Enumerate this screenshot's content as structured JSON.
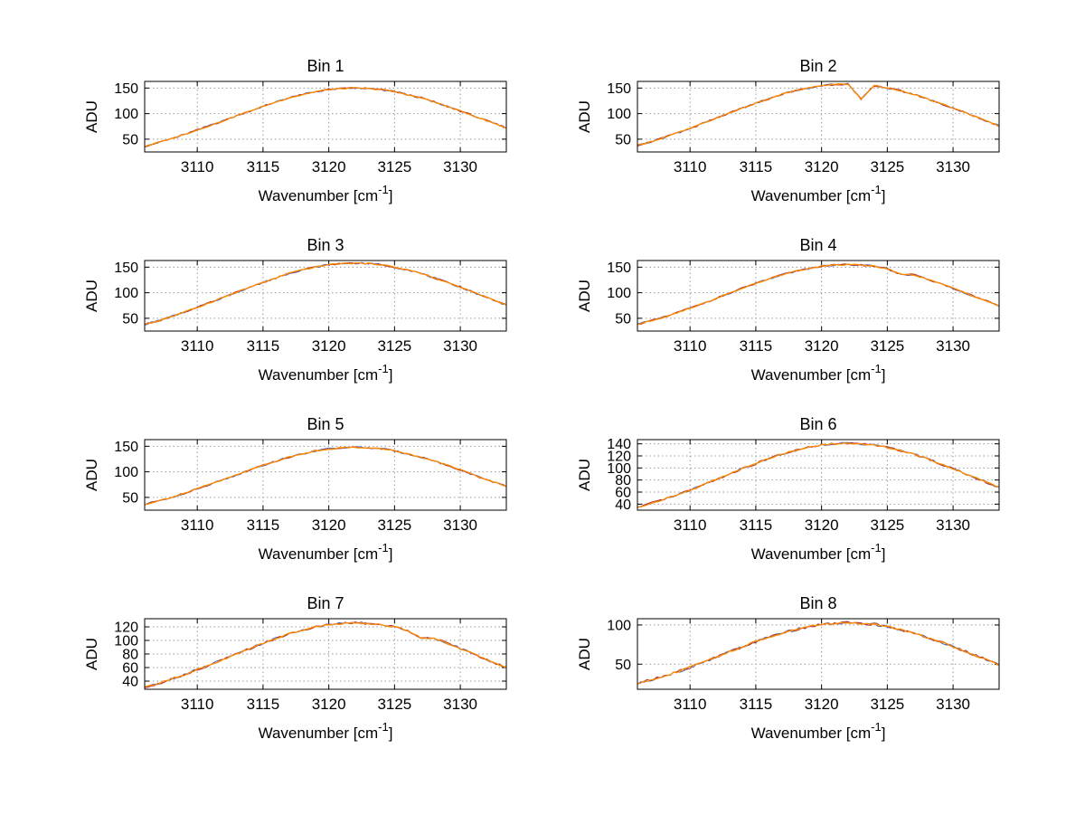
{
  "figure": {
    "background": "#ffffff",
    "colors": {
      "main_line": "#ff8c00",
      "underlay_blue": "#4a5fb5",
      "underlay_red": "#b03a2e",
      "grid": "#999999",
      "axis": "#000000",
      "text": "#000000"
    }
  },
  "axes_labels": {
    "ylabel": "ADU",
    "xlabel_main": "Wavenumber [cm",
    "xlabel_sup": "-1",
    "xlabel_close": "]"
  },
  "shared_axes": {
    "x": [
      3106,
      3107,
      3108,
      3109,
      3110,
      3111,
      3112,
      3113,
      3114,
      3115,
      3116,
      3117,
      3118,
      3119,
      3120,
      3121,
      3122,
      3123,
      3124,
      3125,
      3126,
      3127,
      3128,
      3129,
      3130,
      3131,
      3132,
      3133,
      3133.5
    ],
    "xlim": [
      3106,
      3133.5
    ],
    "xticks": [
      3110,
      3115,
      3120,
      3125,
      3130
    ]
  },
  "chart_data": [
    {
      "type": "line",
      "title": "Bin 1",
      "ylabel": "ADU",
      "xlabel": "Wavenumber [cm⁻¹]",
      "ylim": [
        25,
        163
      ],
      "yticks": [
        50,
        100,
        150
      ],
      "values": [
        36,
        43,
        51,
        59,
        68,
        77,
        86,
        96,
        105,
        114,
        123,
        131,
        137,
        143,
        147,
        149,
        150,
        149,
        147,
        143,
        137,
        131,
        123,
        114,
        105,
        96,
        86,
        77,
        72
      ]
    },
    {
      "type": "line",
      "title": "Bin 2",
      "ylabel": "ADU",
      "xlabel": "Wavenumber [cm⁻¹]",
      "ylim": [
        25,
        163
      ],
      "yticks": [
        50,
        100,
        150
      ],
      "values": [
        38,
        45,
        53,
        62,
        71,
        81,
        91,
        101,
        111,
        120,
        129,
        138,
        145,
        150,
        155,
        157,
        158,
        128,
        155,
        150,
        145,
        138,
        129,
        120,
        111,
        101,
        91,
        81,
        76
      ]
    },
    {
      "type": "line",
      "title": "Bin 3",
      "ylabel": "ADU",
      "xlabel": "Wavenumber [cm⁻¹]",
      "ylim": [
        25,
        163
      ],
      "yticks": [
        50,
        100,
        150
      ],
      "values": [
        38,
        45,
        53,
        62,
        71,
        81,
        91,
        101,
        111,
        120,
        129,
        138,
        145,
        150,
        155,
        157,
        158,
        157,
        155,
        150,
        145,
        138,
        129,
        120,
        111,
        101,
        91,
        81,
        76
      ]
    },
    {
      "type": "line",
      "title": "Bin 4",
      "ylabel": "ADU",
      "xlabel": "Wavenumber [cm⁻¹]",
      "ylim": [
        25,
        163
      ],
      "yticks": [
        50,
        100,
        150
      ],
      "values": [
        38,
        45,
        52,
        61,
        70,
        79,
        89,
        99,
        109,
        118,
        127,
        135,
        142,
        147,
        152,
        154,
        155,
        154,
        152,
        147,
        136,
        135,
        127,
        118,
        109,
        99,
        89,
        79,
        74
      ]
    },
    {
      "type": "line",
      "title": "Bin 5",
      "ylabel": "ADU",
      "xlabel": "Wavenumber [cm⁻¹]",
      "ylim": [
        25,
        163
      ],
      "yticks": [
        50,
        100,
        150
      ],
      "values": [
        36,
        43,
        50,
        58,
        67,
        76,
        85,
        94,
        104,
        113,
        121,
        129,
        135,
        141,
        145,
        147,
        148,
        147,
        145,
        141,
        135,
        129,
        121,
        113,
        104,
        94,
        85,
        76,
        71
      ]
    },
    {
      "type": "line",
      "title": "Bin 6",
      "ylabel": "ADU",
      "xlabel": "Wavenumber [cm⁻¹]",
      "ylim": [
        30,
        147
      ],
      "yticks": [
        40,
        60,
        80,
        100,
        120,
        140
      ],
      "values": [
        34,
        41,
        48,
        55,
        63,
        72,
        81,
        90,
        99,
        107,
        116,
        123,
        129,
        134,
        138,
        140,
        141,
        140,
        138,
        134,
        129,
        123,
        116,
        107,
        99,
        90,
        81,
        72,
        68
      ]
    },
    {
      "type": "line",
      "title": "Bin 7",
      "ylabel": "ADU",
      "xlabel": "Wavenumber [cm⁻¹]",
      "ylim": [
        28,
        132
      ],
      "yticks": [
        40,
        60,
        80,
        100,
        120
      ],
      "values": [
        31,
        36,
        43,
        49,
        57,
        64,
        72,
        80,
        88,
        96,
        103,
        110,
        115,
        120,
        123,
        125,
        126,
        125,
        123,
        120,
        115,
        104,
        103,
        96,
        88,
        80,
        72,
        64,
        61
      ]
    },
    {
      "type": "line",
      "title": "Bin 8",
      "ylabel": "ADU",
      "xlabel": "Wavenumber [cm⁻¹]",
      "ylim": [
        18,
        108
      ],
      "yticks": [
        50,
        100
      ],
      "values": [
        25,
        30,
        35,
        40,
        46,
        53,
        59,
        66,
        72,
        79,
        84,
        90,
        94,
        98,
        101,
        102,
        103,
        102,
        101,
        98,
        94,
        90,
        84,
        79,
        72,
        66,
        59,
        53,
        49
      ]
    }
  ]
}
